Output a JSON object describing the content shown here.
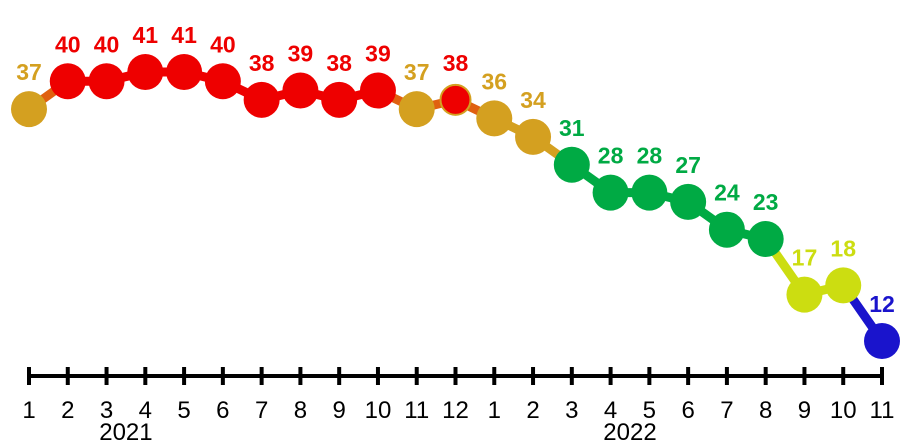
{
  "chart_data": {
    "type": "line",
    "title": "",
    "xlabel": "",
    "ylabel": "",
    "ylim": [
      12,
      41
    ],
    "grid": false,
    "legend": "none",
    "x_tick_labels": [
      "1",
      "2",
      "3",
      "4",
      "5",
      "6",
      "7",
      "8",
      "9",
      "10",
      "11",
      "12",
      "1",
      "2",
      "3",
      "4",
      "5",
      "6",
      "7",
      "8",
      "9",
      "10",
      "11"
    ],
    "x_group_labels": [
      {
        "label": "2021",
        "center_index": 2.5
      },
      {
        "label": "2022",
        "center_index": 15.5
      }
    ],
    "values": [
      37,
      40,
      40,
      41,
      41,
      40,
      38,
      39,
      38,
      39,
      37,
      38,
      36,
      34,
      31,
      28,
      28,
      27,
      24,
      23,
      17,
      18,
      12
    ],
    "point_colors": [
      "#d4a020",
      "#ee0000",
      "#ee0000",
      "#ee0000",
      "#ee0000",
      "#ee0000",
      "#ee0000",
      "#ee0000",
      "#ee0000",
      "#ee0000",
      "#d4a020",
      "#ee0000",
      "#d4a020",
      "#d4a020",
      "#00aa44",
      "#00aa44",
      "#00aa44",
      "#00aa44",
      "#00aa44",
      "#00aa44",
      "#ccdd11",
      "#ccdd11",
      "#1a14cc"
    ],
    "label_colors": [
      "#d4a020",
      "#ee0000",
      "#ee0000",
      "#ee0000",
      "#ee0000",
      "#ee0000",
      "#ee0000",
      "#ee0000",
      "#ee0000",
      "#ee0000",
      "#d4a020",
      "#ee0000",
      "#d4a020",
      "#d4a020",
      "#00aa44",
      "#00aa44",
      "#00aa44",
      "#00aa44",
      "#00aa44",
      "#00aa44",
      "#ccdd11",
      "#ccdd11",
      "#1a14cc"
    ]
  }
}
